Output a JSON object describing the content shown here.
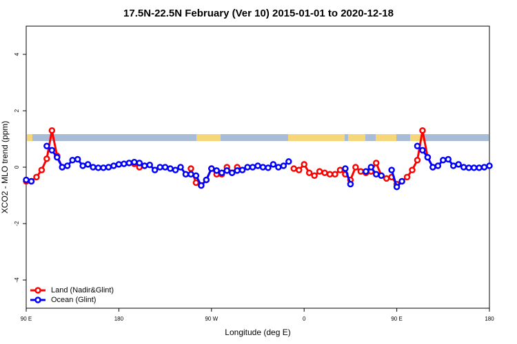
{
  "chart_data": {
    "type": "line",
    "title": "17.5N-22.5N February (Ver 10)   2015-01-01 to 2020-12-18",
    "xlabel": "Longitude (deg E)",
    "ylabel": "XCO2 - MLO trend (ppm)",
    "x": [
      90,
      95,
      100,
      105,
      110,
      115,
      120,
      125,
      130,
      135,
      140,
      145,
      150,
      155,
      160,
      165,
      170,
      175,
      180,
      185,
      190,
      195,
      200,
      205,
      210,
      215,
      220,
      225,
      230,
      235,
      240,
      245,
      250,
      255,
      260,
      265,
      270,
      275,
      280,
      285,
      290,
      295,
      300,
      305,
      310,
      315,
      320,
      325,
      330,
      335,
      340,
      345,
      350,
      355,
      360,
      365,
      370,
      375,
      380,
      385,
      390,
      395,
      400,
      405,
      410,
      415,
      420,
      425,
      430,
      435,
      440,
      445,
      450,
      455,
      460,
      465,
      470,
      475,
      480,
      485,
      490,
      495,
      500,
      505,
      510,
      515,
      520,
      525,
      530,
      535,
      540
    ],
    "series": [
      {
        "name": "Land (Nadir&Glint)",
        "color": "#ff0000",
        "values": [
          -0.5,
          -0.5,
          -0.35,
          -0.1,
          0.3,
          1.3,
          0.4,
          0.0,
          null,
          null,
          null,
          null,
          null,
          null,
          null,
          null,
          null,
          null,
          null,
          null,
          null,
          0.12,
          0.0,
          0.05,
          null,
          null,
          null,
          null,
          null,
          null,
          null,
          null,
          -0.05,
          -0.55,
          -0.65,
          -0.45,
          -0.05,
          -0.25,
          -0.25,
          0.0,
          -0.2,
          0.0,
          null,
          null,
          null,
          null,
          null,
          null,
          null,
          null,
          null,
          null,
          -0.05,
          -0.1,
          0.1,
          -0.2,
          -0.3,
          -0.15,
          -0.2,
          -0.25,
          -0.25,
          -0.1,
          -0.25,
          -0.45,
          0.0,
          -0.15,
          -0.2,
          -0.15,
          0.15,
          -0.3,
          -0.4,
          -0.35,
          -0.6,
          -0.5,
          -0.35,
          -0.1,
          0.25,
          1.3,
          0.35,
          0.0,
          null,
          null,
          null,
          null,
          null,
          null,
          null,
          null,
          null,
          null,
          null
        ]
      },
      {
        "name": "Ocean (Glint)",
        "color": "#0000ff",
        "values": [
          -0.45,
          -0.5,
          null,
          null,
          0.75,
          0.6,
          0.35,
          0.0,
          0.05,
          0.25,
          0.28,
          0.05,
          0.1,
          0.0,
          -0.02,
          -0.02,
          0.0,
          0.05,
          0.1,
          0.12,
          0.15,
          0.18,
          0.15,
          0.05,
          0.08,
          -0.1,
          0.0,
          0.0,
          -0.05,
          -0.1,
          0.0,
          -0.25,
          -0.25,
          -0.3,
          -0.65,
          -0.45,
          -0.05,
          -0.12,
          -0.2,
          -0.12,
          -0.2,
          -0.12,
          -0.1,
          0.0,
          0.0,
          0.05,
          0.0,
          -0.02,
          0.1,
          0.0,
          0.05,
          0.2,
          null,
          null,
          null,
          null,
          null,
          null,
          null,
          null,
          null,
          null,
          -0.05,
          -0.6,
          null,
          null,
          -0.15,
          0.0,
          -0.25,
          -0.3,
          null,
          -0.1,
          -0.7,
          -0.5,
          null,
          null,
          0.75,
          0.6,
          0.35,
          0.0,
          0.05,
          0.25,
          0.28,
          0.05,
          0.1,
          0.0,
          -0.02,
          -0.02,
          -0.02,
          0.0,
          0.05
        ]
      }
    ],
    "xlim": [
      90,
      540
    ],
    "xticks": [
      {
        "value": 90,
        "label": "90 E"
      },
      180,
      {
        "value": 270,
        "label": "90 W"
      },
      {
        "value": 360,
        "label": "0"
      },
      {
        "value": 450,
        "label": "90 E"
      },
      {
        "value": 540,
        "label": "180"
      }
    ],
    "ylim": [
      -5,
      5
    ],
    "yticks": [
      -4,
      -2,
      0,
      2,
      4
    ],
    "legend": "bottom-left"
  }
}
